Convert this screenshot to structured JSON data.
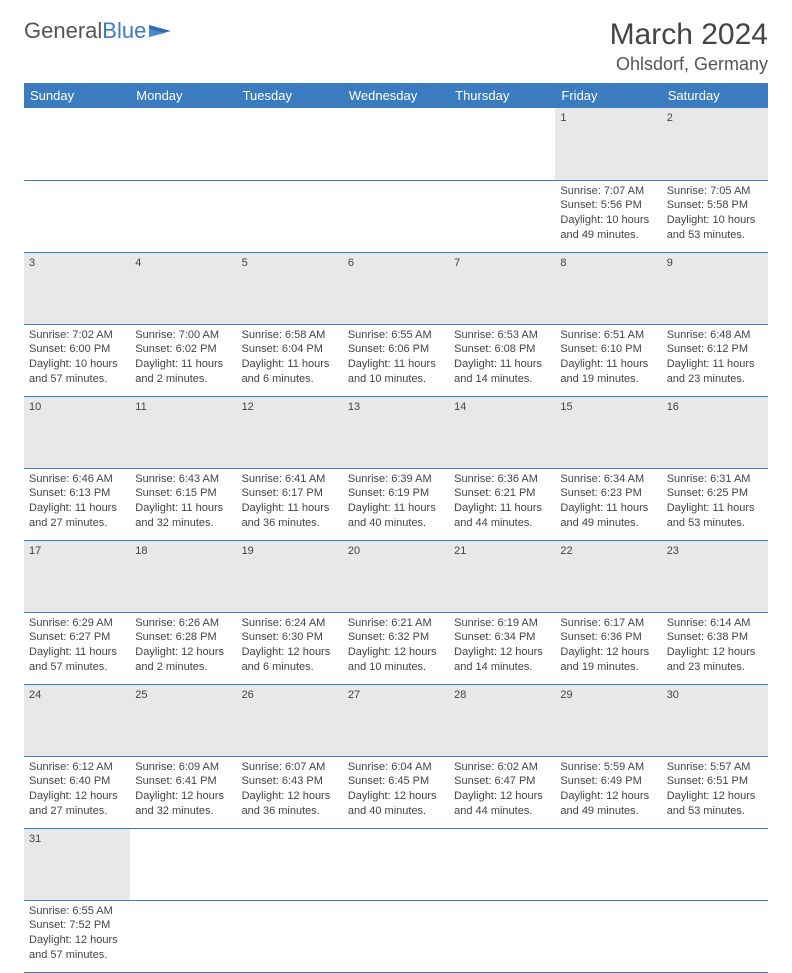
{
  "brand": {
    "part1": "General",
    "part2": "Blue"
  },
  "title": "March 2024",
  "location": "Ohlsdorf, Germany",
  "colors": {
    "header_bg": "#3b7bbf",
    "daynum_bg": "#e8e8e8",
    "border": "#3b7bbf"
  },
  "weekdays": [
    "Sunday",
    "Monday",
    "Tuesday",
    "Wednesday",
    "Thursday",
    "Friday",
    "Saturday"
  ],
  "weeks": [
    {
      "days": [
        null,
        null,
        null,
        null,
        null,
        {
          "n": "1",
          "sunrise": "Sunrise: 7:07 AM",
          "sunset": "Sunset: 5:56 PM",
          "daylight1": "Daylight: 10 hours",
          "daylight2": "and 49 minutes."
        },
        {
          "n": "2",
          "sunrise": "Sunrise: 7:05 AM",
          "sunset": "Sunset: 5:58 PM",
          "daylight1": "Daylight: 10 hours",
          "daylight2": "and 53 minutes."
        }
      ]
    },
    {
      "days": [
        {
          "n": "3",
          "sunrise": "Sunrise: 7:02 AM",
          "sunset": "Sunset: 6:00 PM",
          "daylight1": "Daylight: 10 hours",
          "daylight2": "and 57 minutes."
        },
        {
          "n": "4",
          "sunrise": "Sunrise: 7:00 AM",
          "sunset": "Sunset: 6:02 PM",
          "daylight1": "Daylight: 11 hours",
          "daylight2": "and 2 minutes."
        },
        {
          "n": "5",
          "sunrise": "Sunrise: 6:58 AM",
          "sunset": "Sunset: 6:04 PM",
          "daylight1": "Daylight: 11 hours",
          "daylight2": "and 6 minutes."
        },
        {
          "n": "6",
          "sunrise": "Sunrise: 6:55 AM",
          "sunset": "Sunset: 6:06 PM",
          "daylight1": "Daylight: 11 hours",
          "daylight2": "and 10 minutes."
        },
        {
          "n": "7",
          "sunrise": "Sunrise: 6:53 AM",
          "sunset": "Sunset: 6:08 PM",
          "daylight1": "Daylight: 11 hours",
          "daylight2": "and 14 minutes."
        },
        {
          "n": "8",
          "sunrise": "Sunrise: 6:51 AM",
          "sunset": "Sunset: 6:10 PM",
          "daylight1": "Daylight: 11 hours",
          "daylight2": "and 19 minutes."
        },
        {
          "n": "9",
          "sunrise": "Sunrise: 6:48 AM",
          "sunset": "Sunset: 6:12 PM",
          "daylight1": "Daylight: 11 hours",
          "daylight2": "and 23 minutes."
        }
      ]
    },
    {
      "days": [
        {
          "n": "10",
          "sunrise": "Sunrise: 6:46 AM",
          "sunset": "Sunset: 6:13 PM",
          "daylight1": "Daylight: 11 hours",
          "daylight2": "and 27 minutes."
        },
        {
          "n": "11",
          "sunrise": "Sunrise: 6:43 AM",
          "sunset": "Sunset: 6:15 PM",
          "daylight1": "Daylight: 11 hours",
          "daylight2": "and 32 minutes."
        },
        {
          "n": "12",
          "sunrise": "Sunrise: 6:41 AM",
          "sunset": "Sunset: 6:17 PM",
          "daylight1": "Daylight: 11 hours",
          "daylight2": "and 36 minutes."
        },
        {
          "n": "13",
          "sunrise": "Sunrise: 6:39 AM",
          "sunset": "Sunset: 6:19 PM",
          "daylight1": "Daylight: 11 hours",
          "daylight2": "and 40 minutes."
        },
        {
          "n": "14",
          "sunrise": "Sunrise: 6:36 AM",
          "sunset": "Sunset: 6:21 PM",
          "daylight1": "Daylight: 11 hours",
          "daylight2": "and 44 minutes."
        },
        {
          "n": "15",
          "sunrise": "Sunrise: 6:34 AM",
          "sunset": "Sunset: 6:23 PM",
          "daylight1": "Daylight: 11 hours",
          "daylight2": "and 49 minutes."
        },
        {
          "n": "16",
          "sunrise": "Sunrise: 6:31 AM",
          "sunset": "Sunset: 6:25 PM",
          "daylight1": "Daylight: 11 hours",
          "daylight2": "and 53 minutes."
        }
      ]
    },
    {
      "days": [
        {
          "n": "17",
          "sunrise": "Sunrise: 6:29 AM",
          "sunset": "Sunset: 6:27 PM",
          "daylight1": "Daylight: 11 hours",
          "daylight2": "and 57 minutes."
        },
        {
          "n": "18",
          "sunrise": "Sunrise: 6:26 AM",
          "sunset": "Sunset: 6:28 PM",
          "daylight1": "Daylight: 12 hours",
          "daylight2": "and 2 minutes."
        },
        {
          "n": "19",
          "sunrise": "Sunrise: 6:24 AM",
          "sunset": "Sunset: 6:30 PM",
          "daylight1": "Daylight: 12 hours",
          "daylight2": "and 6 minutes."
        },
        {
          "n": "20",
          "sunrise": "Sunrise: 6:21 AM",
          "sunset": "Sunset: 6:32 PM",
          "daylight1": "Daylight: 12 hours",
          "daylight2": "and 10 minutes."
        },
        {
          "n": "21",
          "sunrise": "Sunrise: 6:19 AM",
          "sunset": "Sunset: 6:34 PM",
          "daylight1": "Daylight: 12 hours",
          "daylight2": "and 14 minutes."
        },
        {
          "n": "22",
          "sunrise": "Sunrise: 6:17 AM",
          "sunset": "Sunset: 6:36 PM",
          "daylight1": "Daylight: 12 hours",
          "daylight2": "and 19 minutes."
        },
        {
          "n": "23",
          "sunrise": "Sunrise: 6:14 AM",
          "sunset": "Sunset: 6:38 PM",
          "daylight1": "Daylight: 12 hours",
          "daylight2": "and 23 minutes."
        }
      ]
    },
    {
      "days": [
        {
          "n": "24",
          "sunrise": "Sunrise: 6:12 AM",
          "sunset": "Sunset: 6:40 PM",
          "daylight1": "Daylight: 12 hours",
          "daylight2": "and 27 minutes."
        },
        {
          "n": "25",
          "sunrise": "Sunrise: 6:09 AM",
          "sunset": "Sunset: 6:41 PM",
          "daylight1": "Daylight: 12 hours",
          "daylight2": "and 32 minutes."
        },
        {
          "n": "26",
          "sunrise": "Sunrise: 6:07 AM",
          "sunset": "Sunset: 6:43 PM",
          "daylight1": "Daylight: 12 hours",
          "daylight2": "and 36 minutes."
        },
        {
          "n": "27",
          "sunrise": "Sunrise: 6:04 AM",
          "sunset": "Sunset: 6:45 PM",
          "daylight1": "Daylight: 12 hours",
          "daylight2": "and 40 minutes."
        },
        {
          "n": "28",
          "sunrise": "Sunrise: 6:02 AM",
          "sunset": "Sunset: 6:47 PM",
          "daylight1": "Daylight: 12 hours",
          "daylight2": "and 44 minutes."
        },
        {
          "n": "29",
          "sunrise": "Sunrise: 5:59 AM",
          "sunset": "Sunset: 6:49 PM",
          "daylight1": "Daylight: 12 hours",
          "daylight2": "and 49 minutes."
        },
        {
          "n": "30",
          "sunrise": "Sunrise: 5:57 AM",
          "sunset": "Sunset: 6:51 PM",
          "daylight1": "Daylight: 12 hours",
          "daylight2": "and 53 minutes."
        }
      ]
    },
    {
      "days": [
        {
          "n": "31",
          "sunrise": "Sunrise: 6:55 AM",
          "sunset": "Sunset: 7:52 PM",
          "daylight1": "Daylight: 12 hours",
          "daylight2": "and 57 minutes."
        },
        null,
        null,
        null,
        null,
        null,
        null
      ]
    }
  ]
}
